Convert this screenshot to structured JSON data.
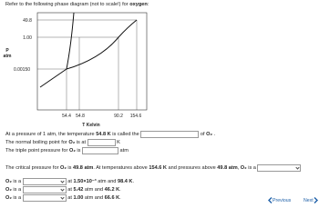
{
  "intro": {
    "text": "Refer to the following phase diagram (not to scale!) for ",
    "substance": "oxygen",
    "end": ":"
  },
  "diagram": {
    "y_labels": [
      "49.8",
      "1.00",
      "0.00150"
    ],
    "y_title": "P",
    "y_unit": "atm",
    "x_labels": [
      "54.4",
      "54.8",
      "90.2",
      "154.6"
    ],
    "x_title": "T Kelvin"
  },
  "q1": [
    "At a pressure of 1 atm, the temperature ",
    "54.8 K",
    " is called the ",
    " of ",
    "O₂",
    " ."
  ],
  "q2": [
    "The normal boiling point for ",
    "O₂",
    " is at ",
    " K"
  ],
  "q3": [
    "The triple point pressure for ",
    "O₂",
    " is ",
    " atm"
  ],
  "q4": [
    "The critical pressure for ",
    "O₂",
    " is ",
    "49.8 atm",
    ". At temperatures above ",
    "154.6 K",
    " and pressures above ",
    "49.8 atm",
    ", ",
    "O₂",
    " is a "
  ],
  "q5": [
    "O₂",
    " is a ",
    " at ",
    "1.50×10⁻³",
    " atm and ",
    "98.4 K",
    "."
  ],
  "q6": [
    "O₂",
    " is a ",
    " at ",
    "5.42",
    " atm and ",
    "46.2 K",
    "."
  ],
  "q7": [
    "O₂",
    " is a ",
    " at ",
    "1.00",
    " atm and ",
    "66.6 K",
    "."
  ],
  "nav": {
    "previous": "Previous",
    "next": "Next"
  }
}
